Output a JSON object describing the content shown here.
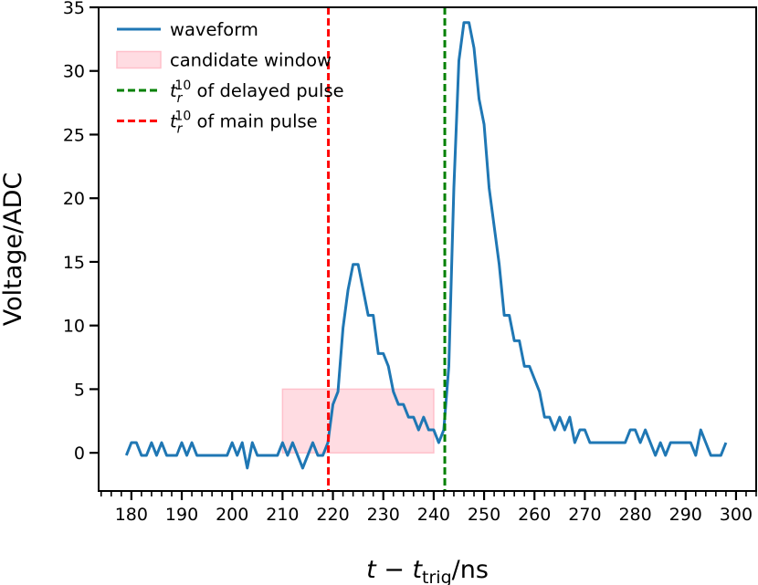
{
  "chart_data": {
    "type": "line",
    "xlabel": "t − t_trig/ns",
    "ylabel": "Voltage/ADC",
    "xlim": [
      173.5,
      304
    ],
    "ylim": [
      -3,
      35
    ],
    "x_ticks": [
      180,
      190,
      200,
      210,
      220,
      230,
      240,
      250,
      260,
      270,
      280,
      290,
      300
    ],
    "y_ticks": [
      0,
      5,
      10,
      15,
      20,
      25,
      30,
      35
    ],
    "series": [
      {
        "name": "waveform",
        "color": "#1f77b4",
        "x": [
          179,
          180,
          181,
          182,
          183,
          184,
          185,
          186,
          187,
          188,
          189,
          190,
          191,
          192,
          193,
          194,
          195,
          196,
          197,
          198,
          199,
          200,
          201,
          202,
          203,
          204,
          205,
          206,
          207,
          208,
          209,
          210,
          211,
          212,
          213,
          214,
          215,
          216,
          217,
          218,
          219,
          220,
          221,
          222,
          223,
          224,
          225,
          226,
          227,
          228,
          229,
          230,
          231,
          232,
          233,
          234,
          235,
          236,
          237,
          238,
          239,
          240,
          241,
          242,
          243,
          244,
          245,
          246,
          247,
          248,
          249,
          250,
          251,
          252,
          253,
          254,
          255,
          256,
          257,
          258,
          259,
          260,
          261,
          262,
          263,
          264,
          265,
          266,
          267,
          268,
          269,
          270,
          271,
          272,
          273,
          274,
          275,
          276,
          277,
          278,
          279,
          280,
          281,
          282,
          283,
          284,
          285,
          286,
          287,
          288,
          289,
          290,
          291,
          292,
          293,
          294,
          295,
          296,
          297,
          298
        ],
        "values": [
          -0.2,
          0.8,
          0.8,
          -0.2,
          -0.2,
          0.8,
          -0.2,
          0.8,
          -0.2,
          -0.2,
          -0.2,
          0.8,
          -0.2,
          0.8,
          -0.2,
          -0.2,
          -0.2,
          -0.2,
          -0.2,
          -0.2,
          -0.2,
          0.8,
          -0.2,
          0.8,
          -1.2,
          0.8,
          -0.2,
          -0.2,
          -0.2,
          -0.2,
          -0.2,
          0.8,
          -0.2,
          0.8,
          -0.2,
          -1.2,
          -0.2,
          0.8,
          -0.2,
          -0.2,
          0.8,
          3.8,
          4.8,
          9.8,
          12.8,
          14.8,
          14.8,
          12.8,
          10.8,
          10.8,
          7.8,
          7.8,
          6.8,
          4.8,
          3.8,
          3.8,
          2.8,
          2.8,
          1.8,
          2.8,
          1.8,
          1.8,
          0.8,
          1.8,
          6.8,
          20.8,
          30.8,
          33.8,
          33.8,
          31.8,
          27.8,
          25.8,
          20.8,
          17.8,
          14.8,
          10.8,
          10.8,
          8.8,
          8.8,
          6.8,
          6.8,
          5.8,
          4.8,
          2.8,
          2.8,
          1.8,
          2.8,
          1.8,
          2.8,
          0.8,
          1.8,
          1.8,
          0.8,
          0.8,
          0.8,
          0.8,
          0.8,
          0.8,
          0.8,
          0.8,
          1.8,
          1.8,
          0.8,
          1.8,
          0.8,
          -0.2,
          0.8,
          -0.2,
          0.8,
          0.8,
          0.8,
          0.8,
          0.8,
          -0.2,
          1.8,
          0.8,
          -0.2,
          -0.2,
          -0.2,
          0.8
        ]
      }
    ],
    "regions": [
      {
        "name": "candidate window",
        "x0": 210,
        "x1": 240,
        "y0": 0,
        "y1": 5,
        "color": "#ffc0cb"
      }
    ],
    "vlines": [
      {
        "name": "t_r^10 of delayed pulse",
        "x": 242.2,
        "color": "#008000"
      },
      {
        "name": "t_r^10 of main pulse",
        "x": 219.1,
        "color": "#ff0000"
      }
    ],
    "legend": {
      "position": "top-left",
      "entries": [
        {
          "kind": "line",
          "color": "#1f77b4",
          "text": "waveform"
        },
        {
          "kind": "patch",
          "color": "#ffc0cb",
          "text": "candidate window"
        },
        {
          "kind": "dashed",
          "color": "#008000",
          "math": "t_r^10",
          "text": " of delayed pulse"
        },
        {
          "kind": "dashed",
          "color": "#ff0000",
          "math": "t_r^10",
          "text": " of main pulse"
        }
      ]
    }
  }
}
